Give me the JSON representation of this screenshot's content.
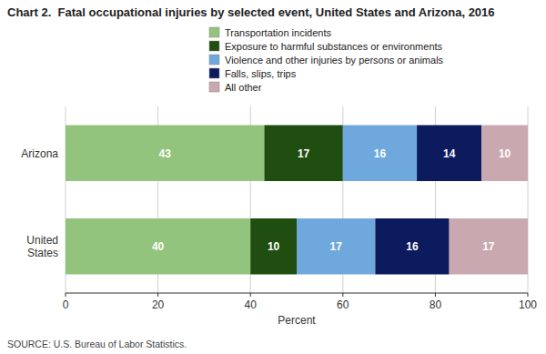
{
  "chart_data": {
    "type": "bar",
    "orientation": "horizontal",
    "stacked": true,
    "data_labels": true,
    "title": "Chart 2.  Fatal occupational injuries by selected event, United States and Arizona, 2016",
    "categories": [
      "Arizona",
      "United\nStates"
    ],
    "series": [
      {
        "name": "Transportation incidents",
        "color": "#93c47d",
        "values": [
          43,
          40
        ]
      },
      {
        "name": "Exposure to harmful substances or environments",
        "color": "#1f4e10",
        "values": [
          17,
          10
        ]
      },
      {
        "name": "Violence and other injuries by persons or animals",
        "color": "#6fa8dc",
        "values": [
          16,
          17
        ]
      },
      {
        "name": "Falls, slips, trips",
        "color": "#0c1a5e",
        "values": [
          14,
          16
        ]
      },
      {
        "name": "All other",
        "color": "#c9a8b0",
        "values": [
          10,
          17
        ]
      }
    ],
    "x_label": "Percent",
    "xlim": [
      0,
      100
    ],
    "xticks": [
      0,
      20,
      40,
      60,
      80,
      100
    ],
    "grid": true,
    "legend": "top",
    "source": "SOURCE: U.S. Bureau of Labor Statistics."
  }
}
